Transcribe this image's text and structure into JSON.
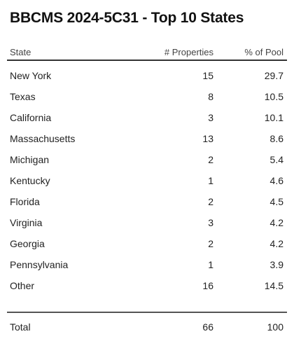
{
  "title": "BBCMS 2024-5C31 - Top 10 States",
  "columns": {
    "state": "State",
    "properties": "# Properties",
    "pct_pool": "% of Pool"
  },
  "rows": [
    {
      "state": "New York",
      "properties": "15",
      "pct_pool": "29.7"
    },
    {
      "state": "Texas",
      "properties": "8",
      "pct_pool": "10.5"
    },
    {
      "state": "California",
      "properties": "3",
      "pct_pool": "10.1"
    },
    {
      "state": "Massachusetts",
      "properties": "13",
      "pct_pool": "8.6"
    },
    {
      "state": "Michigan",
      "properties": "2",
      "pct_pool": "5.4"
    },
    {
      "state": "Kentucky",
      "properties": "1",
      "pct_pool": "4.6"
    },
    {
      "state": "Florida",
      "properties": "2",
      "pct_pool": "4.5"
    },
    {
      "state": "Virginia",
      "properties": "3",
      "pct_pool": "4.2"
    },
    {
      "state": "Georgia",
      "properties": "2",
      "pct_pool": "4.2"
    },
    {
      "state": "Pennsylvania",
      "properties": "1",
      "pct_pool": "3.9"
    },
    {
      "state": "Other",
      "properties": "16",
      "pct_pool": "14.5"
    }
  ],
  "total": {
    "label": "Total",
    "properties": "66",
    "pct_pool": "100"
  }
}
